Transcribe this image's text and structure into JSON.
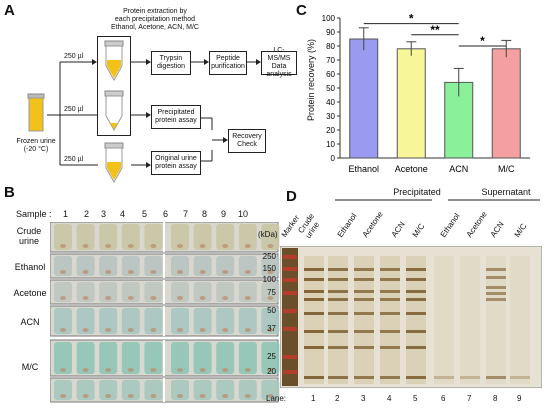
{
  "panels": {
    "a": "A",
    "b": "B",
    "c": "C",
    "d": "D"
  },
  "panel_a": {
    "header": [
      "Protein extraction by",
      "each precipitation method",
      "Ethanol, Acetone, ACN, M/C"
    ],
    "vol1": "250 µl",
    "vol2": "250 µl",
    "vol3": "250 µl",
    "frozen": [
      "Frozen urine",
      "(-20 °C)"
    ],
    "trypsin": [
      "Trypsin",
      "digestion"
    ],
    "peptide": [
      "Peptide",
      "purification"
    ],
    "lcms": [
      "LC-MS/MS",
      "Data analysis"
    ],
    "precip_assay": [
      "Precipitated",
      "protein assay"
    ],
    "orig_assay": [
      "Original urine",
      "protein assay"
    ],
    "recovery": [
      "Recovery",
      "Check"
    ]
  },
  "panel_b": {
    "sample_label": "Sample :",
    "numbers": [
      "1",
      "2",
      "3",
      "4",
      "5",
      "6",
      "7",
      "8",
      "9",
      "10"
    ],
    "rows": [
      "Crude urine",
      "Ethanol",
      "Acetone",
      "ACN",
      "M/C"
    ]
  },
  "chart_data": {
    "type": "bar",
    "categories": [
      "Ethanol",
      "Acetone",
      "ACN",
      "M/C"
    ],
    "values": [
      85,
      78,
      54,
      78
    ],
    "errors": [
      8,
      5,
      10,
      6
    ],
    "colors": [
      "#9a9af0",
      "#f7f79a",
      "#8af09a",
      "#f4a0a0"
    ],
    "ylabel": "Protein recovery (%)",
    "ylim": [
      0,
      100
    ],
    "yticks": [
      "0",
      "10",
      "20",
      "30",
      "40",
      "50",
      "60",
      "70",
      "80",
      "90",
      "100"
    ],
    "significance": [
      {
        "label": "*",
        "from": 0,
        "to": 2
      },
      {
        "label": "**",
        "from": 1,
        "to": 2
      },
      {
        "label": "*",
        "from": 2,
        "to": 3
      }
    ]
  },
  "panel_d": {
    "group_precip": "Precipitated",
    "group_super": "Supernatant",
    "kda": "(kDa)",
    "lane_labels": [
      "Marker",
      "Crude urine",
      "Ethanol",
      "Acetone",
      "ACN",
      "M/C",
      "Ethanol",
      "Acetone",
      "ACN",
      "M/C"
    ],
    "mw": [
      "250",
      "150",
      "100",
      "75",
      "50",
      "37",
      "25",
      "20"
    ],
    "lane_text": "Lane:",
    "lanes": [
      "1",
      "2",
      "3",
      "4",
      "5",
      "6",
      "7",
      "8",
      "9"
    ]
  }
}
